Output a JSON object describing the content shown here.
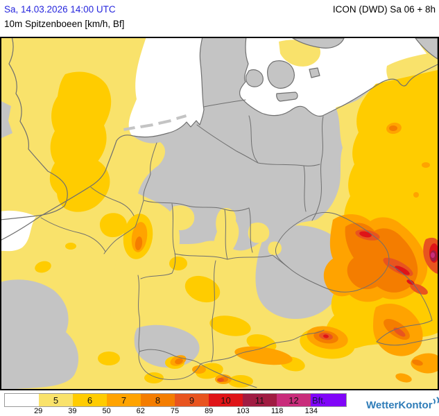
{
  "header": {
    "datetime": "Sa, 14.03.2026 14:00 UTC",
    "model": "ICON (DWD) Sa 06 + 8h",
    "parameter": "10m Spitzenboeen [km/h, Bf]"
  },
  "legend": {
    "title": "Bft.",
    "scale": [
      {
        "label": "",
        "color": "#FFFFFF",
        "from_kmh": ""
      },
      {
        "label": "5",
        "color": "#F9E26B",
        "from_kmh": "29"
      },
      {
        "label": "6",
        "color": "#FFCC00",
        "from_kmh": "39"
      },
      {
        "label": "7",
        "color": "#FFA300",
        "from_kmh": "50"
      },
      {
        "label": "8",
        "color": "#F47D00",
        "from_kmh": "62"
      },
      {
        "label": "9",
        "color": "#E8541F",
        "from_kmh": "75"
      },
      {
        "label": "10",
        "color": "#DF1418",
        "from_kmh": "89"
      },
      {
        "label": "11",
        "color": "#A01C42",
        "from_kmh": "103"
      },
      {
        "label": "12",
        "color": "#C92C7B",
        "from_kmh": "118"
      },
      {
        "label": "Bft.",
        "color": "#8005F8",
        "from_kmh": "134"
      }
    ],
    "kmh_values": [
      "29",
      "39",
      "50",
      "62",
      "75",
      "89",
      "103",
      "118",
      "134"
    ]
  },
  "branding": {
    "logo_text": "WetterKontor"
  },
  "colors": {
    "sea": "#FFFFFF",
    "land": "#C4C4C4",
    "borderline": "#6F6F6F",
    "bft5": "#F9E26B",
    "bft6": "#FFCC00",
    "bft7": "#FFA300",
    "bft8": "#F47D00",
    "bft9": "#E8541F",
    "bft10": "#DF1418",
    "bft11": "#A01C42",
    "bft12": "#C92C7B",
    "dateblue": "#2525DD",
    "logoblue": "#2E7CB8",
    "bftlabel": "#15154A"
  }
}
